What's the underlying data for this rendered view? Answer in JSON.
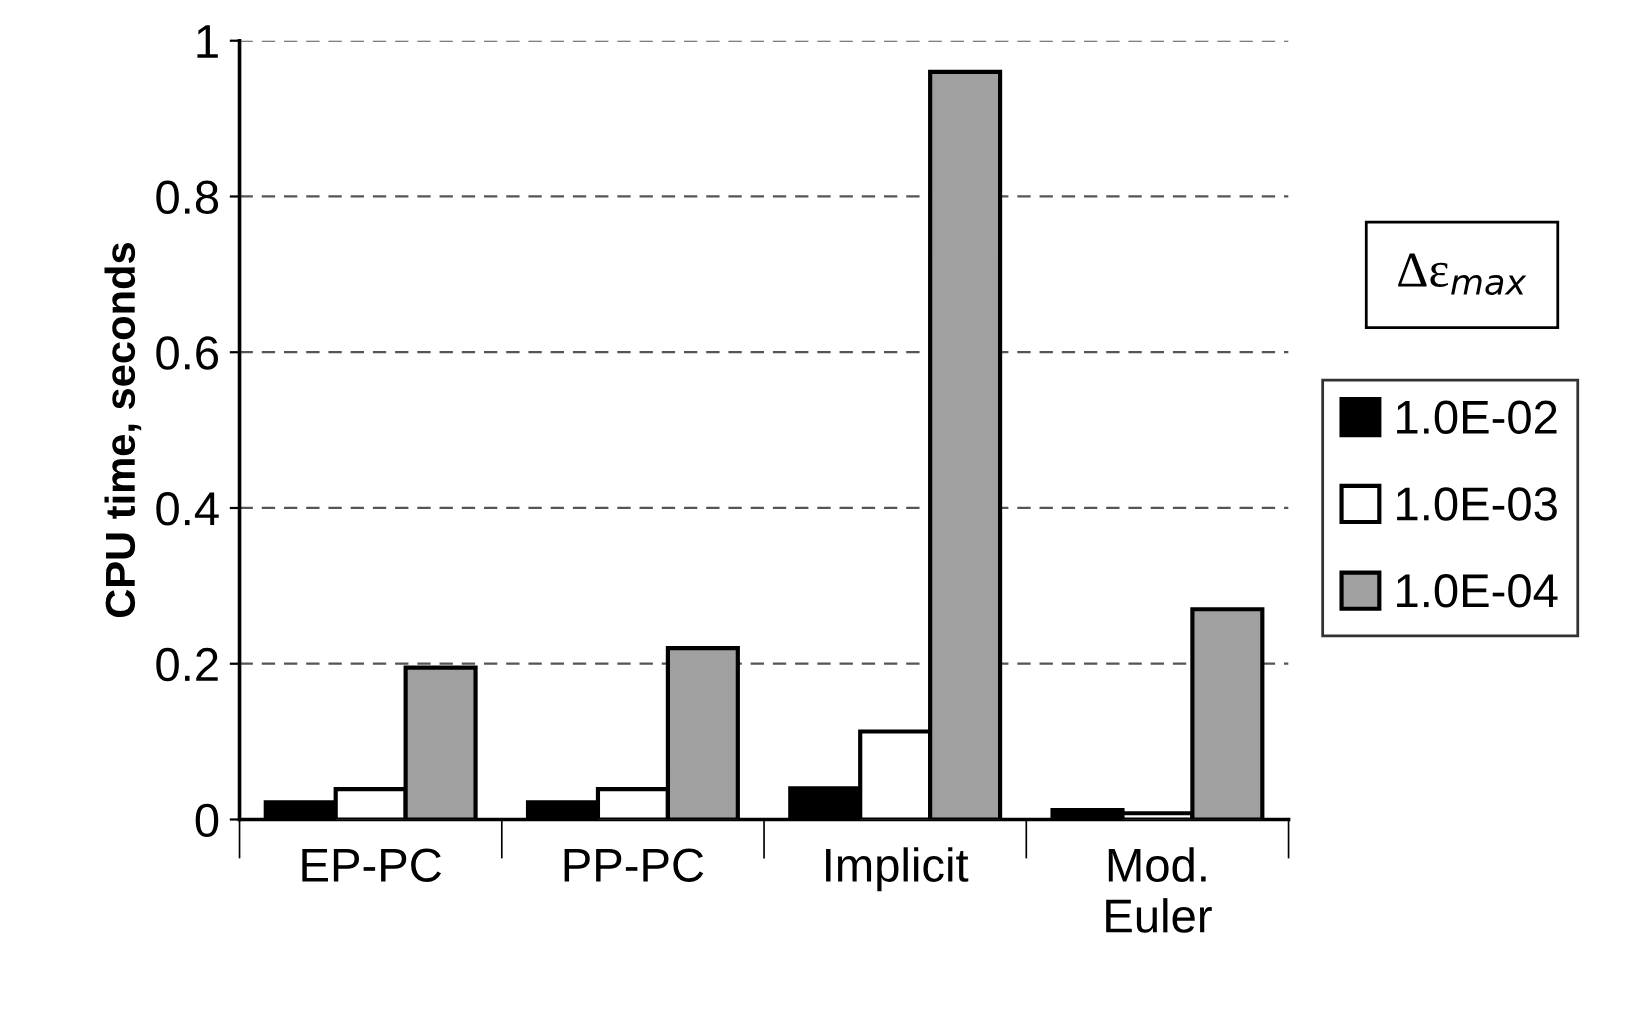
{
  "chart_data": {
    "type": "bar",
    "ylabel": "CPU time, seconds",
    "legend_title": "Δε$_{max}$",
    "categories": [
      "EP-PC",
      "PP-PC",
      "Implicit",
      "Mod.\nEuler"
    ],
    "series": [
      {
        "name": "1.0E-02",
        "color": "#000000",
        "values": [
          0.022,
          0.022,
          0.04,
          0.012
        ]
      },
      {
        "name": "1.0E-03",
        "color": "#ffffff",
        "values": [
          0.039,
          0.039,
          0.113,
          0.008
        ]
      },
      {
        "name": "1.0E-04",
        "color": "#a0a0a0",
        "values": [
          0.195,
          0.22,
          0.96,
          0.27
        ]
      }
    ],
    "ylim": [
      0,
      1
    ],
    "yticks": [
      0,
      0.2,
      0.4,
      0.6,
      0.8,
      1
    ],
    "grid": "y",
    "legend": "right"
  }
}
